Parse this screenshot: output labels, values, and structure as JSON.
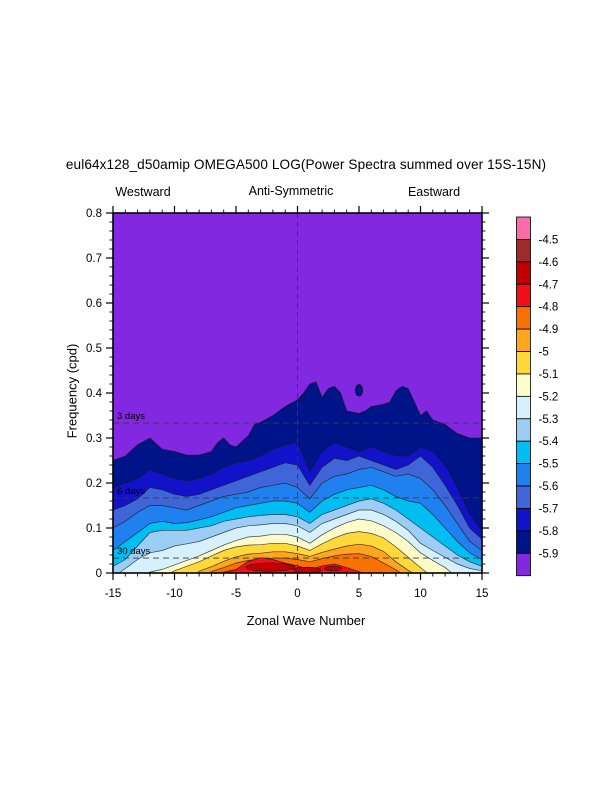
{
  "ui": {
    "title": "eul64x128_d50amip OMEGA500 LOG(Power Spectra summed over 15S-15N)",
    "direction_labels": {
      "west": "Westward",
      "center": "Anti-Symmetric",
      "east": "Eastward"
    }
  },
  "chart_data": {
    "type": "heatmap",
    "subtype": "filled-contour-wavenumber-frequency-spectrum",
    "title": "eul64x128_d50amip OMEGA500 LOG(Power Spectra summed over 15S-15N)",
    "xlabel": "Zonal Wave Number",
    "ylabel": "Frequency (cpd)",
    "xlim": [
      -15,
      15
    ],
    "ylim": [
      0,
      0.8
    ],
    "xticks_major": [
      -15,
      -10,
      -5,
      0,
      5,
      10,
      15
    ],
    "xtick_labels": [
      "-15",
      "-10",
      "-5",
      "0",
      "5",
      "10",
      "15"
    ],
    "xtick_minor_step": 1,
    "yticks_major": [
      0,
      0.1,
      0.2,
      0.3,
      0.4,
      0.5,
      0.6,
      0.7,
      0.8
    ],
    "ytick_labels": [
      "0",
      "0.1",
      "0.2",
      "0.3",
      "0.4",
      "0.5",
      "0.6",
      "0.7",
      "0.8"
    ],
    "ytick_minor_step": 0.02,
    "grid": false,
    "background_level_color": "#8228E0",
    "reference_lines": [
      {
        "label": "3 days",
        "freq": 0.3333
      },
      {
        "label": "6 days",
        "freq": 0.1667
      },
      {
        "label": "30 days",
        "freq": 0.0333
      }
    ],
    "zero_line": {
      "x": 0
    },
    "levels": [
      -5.9,
      -5.8,
      -5.7,
      -5.6,
      -5.5,
      -5.4,
      -5.3,
      -5.2,
      -5.1,
      -5,
      -4.9,
      -4.8,
      -4.7,
      -4.6,
      -4.5
    ],
    "wavenumbers": [
      -15,
      -14,
      -13,
      -12,
      -11,
      -10,
      -9,
      -8,
      -7,
      -6,
      -5,
      -4,
      -3,
      -2,
      -1,
      0,
      1,
      2,
      3,
      4,
      5,
      6,
      7,
      8,
      9,
      10,
      11,
      12,
      13,
      14,
      15
    ],
    "contour_boundaries": [
      {
        "level": -5.9,
        "fill_below": "#001489",
        "x": [
          -15,
          -14,
          -13,
          -12,
          -11,
          -10,
          -9,
          -8,
          -7,
          -6.5,
          -6,
          -5.5,
          -5,
          -4,
          -3.5,
          -3,
          -2,
          -1,
          0,
          0.5,
          1,
          1.5,
          2,
          2.5,
          3,
          3.5,
          4,
          5,
          5.5,
          6,
          7,
          7.5,
          8,
          8.5,
          9,
          9.5,
          10,
          10.5,
          11,
          12,
          13,
          14,
          15
        ],
        "f": [
          0.25,
          0.26,
          0.285,
          0.3,
          0.275,
          0.27,
          0.262,
          0.262,
          0.27,
          0.29,
          0.3,
          0.285,
          0.28,
          0.305,
          0.33,
          0.335,
          0.35,
          0.37,
          0.385,
          0.4,
          0.42,
          0.425,
          0.39,
          0.41,
          0.415,
          0.4,
          0.36,
          0.355,
          0.36,
          0.37,
          0.375,
          0.38,
          0.405,
          0.415,
          0.41,
          0.38,
          0.35,
          0.36,
          0.34,
          0.33,
          0.31,
          0.3,
          0.3
        ]
      },
      {
        "level": -5.8,
        "fill_below": "#1212C8",
        "f": [
          0.19,
          0.2,
          0.21,
          0.23,
          0.22,
          0.21,
          0.205,
          0.21,
          0.22,
          0.235,
          0.245,
          0.25,
          0.26,
          0.275,
          0.285,
          0.29,
          0.225,
          0.27,
          0.29,
          0.28,
          0.27,
          0.28,
          0.27,
          0.26,
          0.26,
          0.28,
          0.27,
          0.24,
          0.19,
          0.13,
          0.095
        ]
      },
      {
        "level": -5.7,
        "fill_below": "#3F65D8",
        "f": [
          0.14,
          0.15,
          0.165,
          0.19,
          0.185,
          0.175,
          0.17,
          0.175,
          0.185,
          0.195,
          0.205,
          0.215,
          0.225,
          0.235,
          0.245,
          0.24,
          0.195,
          0.235,
          0.255,
          0.25,
          0.26,
          0.25,
          0.24,
          0.23,
          0.24,
          0.26,
          0.235,
          0.195,
          0.15,
          0.1,
          0.075
        ]
      },
      {
        "level": -5.6,
        "fill_below": "#2080F0",
        "f": [
          0.1,
          0.115,
          0.135,
          0.15,
          0.15,
          0.145,
          0.14,
          0.15,
          0.16,
          0.17,
          0.175,
          0.18,
          0.19,
          0.195,
          0.2,
          0.19,
          0.165,
          0.2,
          0.215,
          0.22,
          0.23,
          0.235,
          0.225,
          0.215,
          0.22,
          0.21,
          0.185,
          0.15,
          0.11,
          0.07,
          0.05
        ]
      },
      {
        "level": -5.5,
        "fill_below": "#00BDF2",
        "f": [
          0.05,
          0.07,
          0.09,
          0.11,
          0.115,
          0.11,
          0.112,
          0.118,
          0.125,
          0.135,
          0.145,
          0.15,
          0.155,
          0.16,
          0.16,
          0.155,
          0.135,
          0.16,
          0.175,
          0.185,
          0.19,
          0.195,
          0.185,
          0.17,
          0.16,
          0.155,
          0.13,
          0.1,
          0.07,
          0.045,
          0.03
        ]
      },
      {
        "level": -5.4,
        "fill_below": "#9CCDF5",
        "f": [
          0.015,
          0.03,
          0.06,
          0.09,
          0.095,
          0.095,
          0.095,
          0.1,
          0.105,
          0.115,
          0.12,
          0.125,
          0.128,
          0.13,
          0.13,
          0.125,
          0.11,
          0.13,
          0.14,
          0.15,
          0.16,
          0.165,
          0.155,
          0.14,
          0.12,
          0.1,
          0.08,
          0.06,
          0.04,
          0.025,
          0.015
        ]
      },
      {
        "level": -5.3,
        "fill_below": "#D6F1FB",
        "f": [
          -0.01,
          0.01,
          0.03,
          0.045,
          0.05,
          0.06,
          0.065,
          0.07,
          0.08,
          0.09,
          0.1,
          0.105,
          0.107,
          0.11,
          0.11,
          0.105,
          0.09,
          0.11,
          0.12,
          0.13,
          0.14,
          0.14,
          0.13,
          0.115,
          0.095,
          0.066,
          0.05,
          0.035,
          0.02,
          0.01,
          0.005
        ]
      },
      {
        "level": -5.2,
        "fill_below": "#FCFBC9",
        "f": [
          -0.02,
          -0.02,
          -0.01,
          0.002,
          0.008,
          0.018,
          0.028,
          0.038,
          0.05,
          0.062,
          0.072,
          0.08,
          0.082,
          0.086,
          0.086,
          0.08,
          0.066,
          0.085,
          0.1,
          0.112,
          0.12,
          0.116,
          0.105,
          0.09,
          0.07,
          0.045,
          0.028,
          0.012,
          -0.01,
          -0.01,
          -0.01
        ]
      },
      {
        "level": -5.1,
        "fill_below": "#FFD83C",
        "f": [
          -0.02,
          -0.02,
          -0.02,
          -0.02,
          -0.01,
          0.005,
          0.015,
          0.025,
          0.038,
          0.05,
          0.058,
          0.062,
          0.063,
          0.066,
          0.066,
          0.06,
          0.05,
          0.065,
          0.078,
          0.088,
          0.092,
          0.088,
          0.078,
          0.058,
          0.035,
          0.012,
          -0.01,
          -0.02,
          -0.02,
          -0.02,
          -0.02
        ]
      },
      {
        "level": -5.0,
        "fill_below": "#FFA51F",
        "f": [
          -0.02,
          -0.02,
          -0.02,
          -0.02,
          -0.02,
          -0.02,
          -0.02,
          0.004,
          0.014,
          0.026,
          0.036,
          0.042,
          0.044,
          0.047,
          0.047,
          0.043,
          0.037,
          0.046,
          0.053,
          0.06,
          0.064,
          0.06,
          0.048,
          0.025,
          0.006,
          -0.01,
          -0.02,
          -0.02,
          -0.02,
          -0.02,
          -0.02
        ]
      },
      {
        "level": -4.9,
        "fill_below": "#F97100",
        "f": [
          -0.02,
          -0.02,
          -0.02,
          -0.02,
          -0.02,
          -0.02,
          -0.02,
          -0.02,
          0.003,
          0.012,
          0.022,
          0.028,
          0.031,
          0.033,
          0.033,
          0.03,
          0.025,
          0.032,
          0.038,
          0.042,
          0.043,
          0.037,
          0.022,
          0.007,
          -0.01,
          -0.02,
          -0.02,
          -0.02,
          -0.02,
          -0.02,
          -0.02
        ]
      },
      {
        "level": -4.8,
        "fill_below": "#EF0E1A",
        "f": [
          -0.02,
          -0.02,
          -0.02,
          -0.02,
          -0.02,
          -0.02,
          -0.02,
          -0.02,
          -0.02,
          0.002,
          0.008,
          0.026,
          0.034,
          0.03,
          0.022,
          0.016,
          0.008,
          0.016,
          0.02,
          0.012,
          0.003,
          -0.01,
          -0.02,
          -0.02,
          -0.02,
          -0.02,
          -0.02,
          -0.02,
          -0.02,
          -0.02,
          -0.02
        ]
      }
    ],
    "features": {
      "navy_spot": {
        "wn": 5.0,
        "f": 0.406,
        "rx": 0.3,
        "ry": 0.013,
        "color": "#001489"
      },
      "core_color": "#C10000",
      "dark_red_cores": [
        {
          "wn": -2.2,
          "f": 0.013,
          "rx": 2.0,
          "ry": 0.009
        },
        {
          "wn": 0.8,
          "f": 0.007,
          "rx": 1.1,
          "ry": 0.006
        },
        {
          "wn": 2.9,
          "f": 0.01,
          "rx": 0.7,
          "ry": 0.005
        }
      ]
    },
    "colorbar": {
      "labels_top_to_bottom": [
        "-4.5",
        "-4.6",
        "-4.7",
        "-4.8",
        "-4.9",
        "-5",
        "-5.1",
        "-5.2",
        "-5.3",
        "-5.4",
        "-5.5",
        "-5.6",
        "-5.7",
        "-5.8",
        "-5.9"
      ],
      "colors_top_to_bottom": [
        "#FB6BAA",
        "#9E2B2B",
        "#C10000",
        "#EF0E1A",
        "#F97100",
        "#FFA51F",
        "#FFD83C",
        "#FCFBC9",
        "#D6F1FB",
        "#9CCDF5",
        "#00BDF2",
        "#2080F0",
        "#3F65D8",
        "#1212C8",
        "#001489",
        "#8228E0"
      ]
    }
  }
}
